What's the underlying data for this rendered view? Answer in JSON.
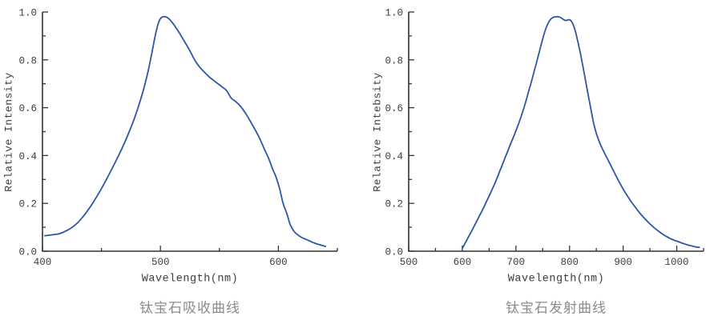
{
  "colors": {
    "background": "#ffffff",
    "curve": "#2e55a6",
    "axis": "#333333",
    "tick_text": "#3d3d3d",
    "title_text": "#8c8c8c"
  },
  "chart_data": [
    {
      "type": "line",
      "title": "钛宝石吸收曲线",
      "xlabel": "Wavelength(nm)",
      "ylabel": "Relative Intensity",
      "xlim": [
        400,
        650
      ],
      "ylim": [
        0.0,
        1.0
      ],
      "grid": false,
      "legend": "none",
      "xticks_major": [
        400,
        500,
        600
      ],
      "xtick_labels": [
        "400",
        "500",
        "600"
      ],
      "xticks_minor": [
        450,
        550,
        650
      ],
      "yticks_major": [
        0.0,
        0.2,
        0.4,
        0.6,
        0.8,
        1.0
      ],
      "ytick_labels": [
        "0.0",
        "0.2",
        "0.4",
        "0.6",
        "0.8",
        "1.0"
      ],
      "yticks_minor": [
        0.1,
        0.3,
        0.5,
        0.7,
        0.9
      ],
      "series": [
        {
          "name": "absorption",
          "points": [
            [
              402,
              0.065
            ],
            [
              406,
              0.067
            ],
            [
              410,
              0.07
            ],
            [
              414,
              0.073
            ],
            [
              418,
              0.08
            ],
            [
              422,
              0.09
            ],
            [
              426,
              0.103
            ],
            [
              430,
              0.12
            ],
            [
              434,
              0.142
            ],
            [
              438,
              0.168
            ],
            [
              442,
              0.196
            ],
            [
              446,
              0.228
            ],
            [
              450,
              0.262
            ],
            [
              454,
              0.298
            ],
            [
              458,
              0.336
            ],
            [
              462,
              0.375
            ],
            [
              466,
              0.415
            ],
            [
              470,
              0.458
            ],
            [
              474,
              0.505
            ],
            [
              478,
              0.556
            ],
            [
              482,
              0.615
            ],
            [
              486,
              0.682
            ],
            [
              489,
              0.74
            ],
            [
              492,
              0.81
            ],
            [
              494,
              0.862
            ],
            [
              496,
              0.91
            ],
            [
              498,
              0.95
            ],
            [
              500,
              0.972
            ],
            [
              502,
              0.98
            ],
            [
              505,
              0.979
            ],
            [
              508,
              0.968
            ],
            [
              511,
              0.95
            ],
            [
              514,
              0.928
            ],
            [
              517,
              0.905
            ],
            [
              520,
              0.88
            ],
            [
              523,
              0.855
            ],
            [
              526,
              0.828
            ],
            [
              529,
              0.8
            ],
            [
              532,
              0.778
            ],
            [
              535,
              0.76
            ],
            [
              538,
              0.745
            ],
            [
              541,
              0.73
            ],
            [
              544,
              0.718
            ],
            [
              548,
              0.703
            ],
            [
              552,
              0.688
            ],
            [
              556,
              0.672
            ],
            [
              560,
              0.64
            ],
            [
              564,
              0.625
            ],
            [
              568,
              0.605
            ],
            [
              572,
              0.578
            ],
            [
              576,
              0.545
            ],
            [
              580,
              0.51
            ],
            [
              584,
              0.473
            ],
            [
              588,
              0.428
            ],
            [
              592,
              0.385
            ],
            [
              595,
              0.345
            ],
            [
              598,
              0.31
            ],
            [
              601,
              0.262
            ],
            [
              604,
              0.2
            ],
            [
              607,
              0.16
            ],
            [
              610,
              0.112
            ],
            [
              613,
              0.085
            ],
            [
              616,
              0.07
            ],
            [
              620,
              0.057
            ],
            [
              625,
              0.046
            ],
            [
              630,
              0.035
            ],
            [
              635,
              0.027
            ],
            [
              640,
              0.02
            ]
          ]
        }
      ]
    },
    {
      "type": "line",
      "title": "钛宝石发射曲线",
      "xlabel": "Wavelength(nm)",
      "ylabel": "Relative Intebsity",
      "xlim": [
        500,
        1050
      ],
      "ylim": [
        0.0,
        1.0
      ],
      "grid": false,
      "legend": "none",
      "xticks_major": [
        500,
        600,
        700,
        800,
        900,
        1000
      ],
      "xtick_labels": [
        "500",
        "600",
        "700",
        "800",
        "900",
        "1000"
      ],
      "xticks_minor": [
        550,
        650,
        750,
        850,
        950,
        1050
      ],
      "yticks_major": [
        0.0,
        0.2,
        0.4,
        0.6,
        0.8,
        1.0
      ],
      "ytick_labels": [
        "0.0",
        "0.2",
        "0.4",
        "0.6",
        "0.8",
        "1.0"
      ],
      "yticks_minor": [
        0.1,
        0.3,
        0.5,
        0.7,
        0.9
      ],
      "series": [
        {
          "name": "emission",
          "points": [
            [
              600,
              0.012
            ],
            [
              604,
              0.028
            ],
            [
              608,
              0.045
            ],
            [
              612,
              0.062
            ],
            [
              616,
              0.078
            ],
            [
              620,
              0.095
            ],
            [
              624,
              0.113
            ],
            [
              628,
              0.13
            ],
            [
              632,
              0.148
            ],
            [
              636,
              0.165
            ],
            [
              640,
              0.183
            ],
            [
              645,
              0.207
            ],
            [
              650,
              0.23
            ],
            [
              655,
              0.255
            ],
            [
              660,
              0.28
            ],
            [
              665,
              0.307
            ],
            [
              670,
              0.335
            ],
            [
              675,
              0.363
            ],
            [
              680,
              0.392
            ],
            [
              685,
              0.42
            ],
            [
              690,
              0.448
            ],
            [
              695,
              0.475
            ],
            [
              700,
              0.503
            ],
            [
              705,
              0.533
            ],
            [
              710,
              0.565
            ],
            [
              715,
              0.6
            ],
            [
              720,
              0.638
            ],
            [
              725,
              0.678
            ],
            [
              730,
              0.718
            ],
            [
              735,
              0.76
            ],
            [
              740,
              0.802
            ],
            [
              745,
              0.845
            ],
            [
              750,
              0.888
            ],
            [
              755,
              0.925
            ],
            [
              760,
              0.953
            ],
            [
              765,
              0.97
            ],
            [
              770,
              0.978
            ],
            [
              775,
              0.98
            ],
            [
              780,
              0.98
            ],
            [
              784,
              0.976
            ],
            [
              788,
              0.97
            ],
            [
              792,
              0.965
            ],
            [
              796,
              0.966
            ],
            [
              800,
              0.968
            ],
            [
              804,
              0.96
            ],
            [
              808,
              0.94
            ],
            [
              812,
              0.91
            ],
            [
              816,
              0.872
            ],
            [
              820,
              0.83
            ],
            [
              825,
              0.772
            ],
            [
              830,
              0.712
            ],
            [
              835,
              0.652
            ],
            [
              840,
              0.592
            ],
            [
              845,
              0.535
            ],
            [
              850,
              0.492
            ],
            [
              856,
              0.455
            ],
            [
              862,
              0.425
            ],
            [
              868,
              0.398
            ],
            [
              874,
              0.372
            ],
            [
              880,
              0.345
            ],
            [
              886,
              0.318
            ],
            [
              892,
              0.292
            ],
            [
              898,
              0.268
            ],
            [
              904,
              0.245
            ],
            [
              910,
              0.224
            ],
            [
              916,
              0.204
            ],
            [
              922,
              0.186
            ],
            [
              928,
              0.168
            ],
            [
              934,
              0.152
            ],
            [
              940,
              0.137
            ],
            [
              946,
              0.123
            ],
            [
              952,
              0.11
            ],
            [
              958,
              0.098
            ],
            [
              964,
              0.087
            ],
            [
              970,
              0.077
            ],
            [
              976,
              0.068
            ],
            [
              982,
              0.06
            ],
            [
              988,
              0.053
            ],
            [
              994,
              0.047
            ],
            [
              1000,
              0.042
            ],
            [
              1006,
              0.037
            ],
            [
              1012,
              0.032
            ],
            [
              1018,
              0.028
            ],
            [
              1024,
              0.024
            ],
            [
              1030,
              0.021
            ],
            [
              1036,
              0.018
            ],
            [
              1042,
              0.016
            ]
          ]
        }
      ]
    }
  ]
}
